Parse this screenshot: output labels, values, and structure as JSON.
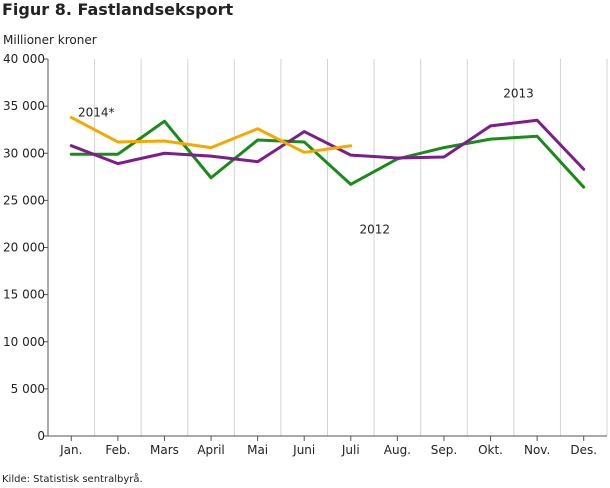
{
  "figure": {
    "title": "Figur 8. Fastlandseksport",
    "unit_label": "Millioner kroner",
    "source": "Kilde: Statistisk sentralbyrå."
  },
  "chart_data": {
    "type": "line",
    "title": "Figur 8. Fastlandseksport",
    "xlabel": "",
    "ylabel": "Millioner kroner",
    "categories": [
      "Jan.",
      "Feb.",
      "Mars",
      "April",
      "Mai",
      "Juni",
      "Juli",
      "Aug.",
      "Sep.",
      "Okt.",
      "Nov.",
      "Des."
    ],
    "ylim": [
      0,
      40000
    ],
    "yticks": [
      0,
      5000,
      10000,
      15000,
      20000,
      25000,
      30000,
      35000,
      40000
    ],
    "ytick_labels": [
      "0",
      "5 000",
      "10 000",
      "15 000",
      "20 000",
      "25 000",
      "30 000",
      "35 000",
      "40 000"
    ],
    "grid": "vertical",
    "series": [
      {
        "name": "2012",
        "color": "#1a8a1a",
        "values": [
          29900,
          29900,
          33400,
          27400,
          31400,
          31200,
          26700,
          29400,
          30600,
          31500,
          31800,
          26400
        ]
      },
      {
        "name": "2013",
        "color": "#7b1e8c",
        "values": [
          30800,
          28900,
          30000,
          29700,
          29100,
          32300,
          29800,
          29500,
          29600,
          32900,
          33500,
          28300
        ]
      },
      {
        "name": "2014*",
        "color": "#f5a800",
        "values": [
          33800,
          31200,
          31300,
          30600,
          32600,
          30100,
          30800,
          null,
          null,
          null,
          null,
          null
        ]
      }
    ]
  }
}
